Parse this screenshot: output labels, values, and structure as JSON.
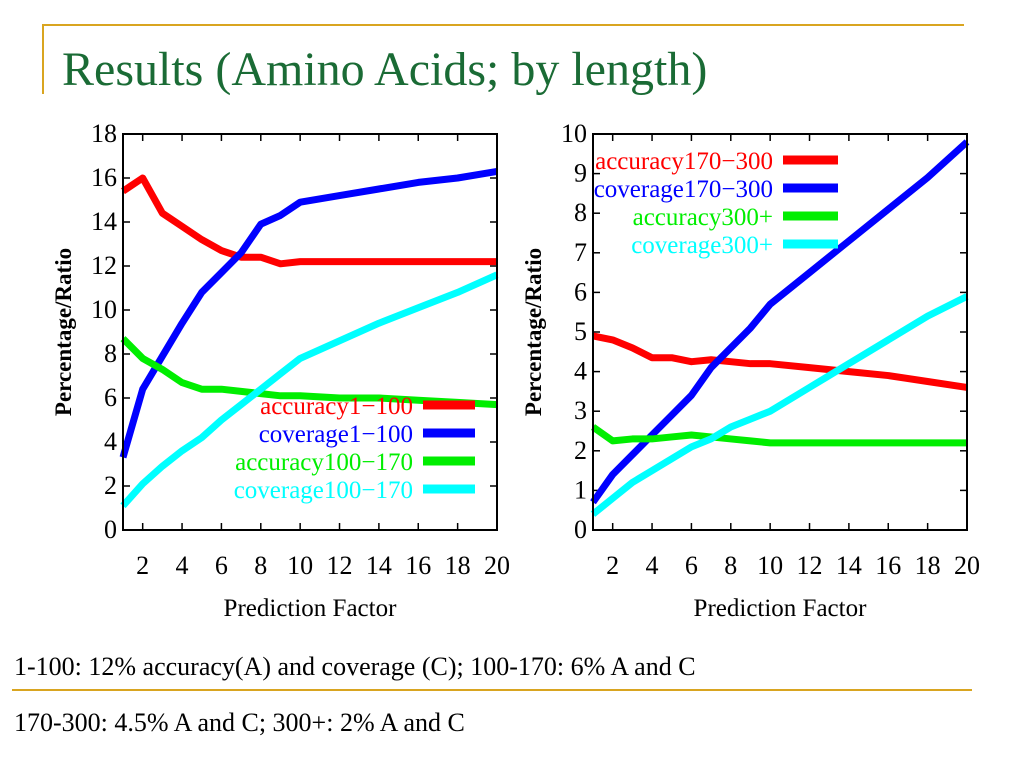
{
  "slide": {
    "title": "Results (Amino Acids; by length)",
    "caption_line1": "1-100: 12% accuracy(A) and coverage (C); 100-170: 6% A and C",
    "caption_line2": "170-300: 4.5% A and C; 300+: 2% A and C"
  },
  "colors": {
    "title": "#1a6b35",
    "accent": "#d9a520"
  },
  "chart_data": [
    {
      "type": "line",
      "xlabel": "Prediction Factor",
      "ylabel": "Percentage/Ratio",
      "xlim": [
        1,
        20
      ],
      "ylim": [
        0,
        18
      ],
      "xticks": [
        2,
        4,
        6,
        8,
        10,
        12,
        14,
        16,
        18,
        20
      ],
      "yticks": [
        0,
        2,
        4,
        6,
        8,
        10,
        12,
        14,
        16,
        18
      ],
      "legend_position": "bottom-right",
      "series": [
        {
          "name": "accuracy1−100",
          "color": "#ff0000",
          "x": [
            1,
            2,
            3,
            4,
            5,
            6,
            7,
            8,
            9,
            10,
            12,
            14,
            16,
            18,
            20
          ],
          "y": [
            15.4,
            16.0,
            14.4,
            13.8,
            13.2,
            12.7,
            12.4,
            12.4,
            12.1,
            12.2,
            12.2,
            12.2,
            12.2,
            12.2,
            12.2
          ]
        },
        {
          "name": "coverage1−100",
          "color": "#0000ff",
          "x": [
            1,
            2,
            3,
            4,
            5,
            6,
            7,
            8,
            9,
            10,
            12,
            14,
            16,
            18,
            20
          ],
          "y": [
            3.3,
            6.4,
            7.9,
            9.4,
            10.8,
            11.7,
            12.6,
            13.9,
            14.3,
            14.9,
            15.2,
            15.5,
            15.8,
            16.0,
            16.3
          ]
        },
        {
          "name": "accuracy100−170",
          "color": "#00ee00",
          "x": [
            1,
            2,
            3,
            4,
            5,
            6,
            7,
            8,
            9,
            10,
            12,
            14,
            16,
            18,
            20
          ],
          "y": [
            8.7,
            7.8,
            7.3,
            6.7,
            6.4,
            6.4,
            6.3,
            6.2,
            6.1,
            6.1,
            6.0,
            6.0,
            5.9,
            5.8,
            5.7
          ]
        },
        {
          "name": "coverage100−170",
          "color": "#00ffff",
          "x": [
            1,
            2,
            3,
            4,
            5,
            6,
            7,
            8,
            9,
            10,
            12,
            14,
            16,
            18,
            20
          ],
          "y": [
            1.1,
            2.1,
            2.9,
            3.6,
            4.2,
            5.0,
            5.7,
            6.4,
            7.1,
            7.8,
            8.6,
            9.4,
            10.1,
            10.8,
            11.6
          ]
        }
      ]
    },
    {
      "type": "line",
      "xlabel": "Prediction Factor",
      "ylabel": "Percentage/Ratio",
      "xlim": [
        1,
        20
      ],
      "ylim": [
        0,
        10
      ],
      "xticks": [
        2,
        4,
        6,
        8,
        10,
        12,
        14,
        16,
        18,
        20
      ],
      "yticks": [
        0,
        1,
        2,
        3,
        4,
        5,
        6,
        7,
        8,
        9,
        10
      ],
      "legend_position": "top-right",
      "series": [
        {
          "name": "accuracy170−300",
          "color": "#ff0000",
          "x": [
            1,
            2,
            3,
            4,
            5,
            6,
            7,
            8,
            9,
            10,
            12,
            14,
            16,
            18,
            20
          ],
          "y": [
            4.9,
            4.8,
            4.6,
            4.35,
            4.35,
            4.25,
            4.3,
            4.25,
            4.2,
            4.2,
            4.1,
            4.0,
            3.9,
            3.75,
            3.6
          ]
        },
        {
          "name": "coverage170−300",
          "color": "#0000ff",
          "x": [
            1,
            2,
            3,
            4,
            5,
            6,
            7,
            8,
            9,
            10,
            12,
            14,
            16,
            18,
            20
          ],
          "y": [
            0.7,
            1.4,
            1.9,
            2.4,
            2.9,
            3.4,
            4.1,
            4.6,
            5.1,
            5.7,
            6.5,
            7.3,
            8.1,
            8.9,
            9.8
          ]
        },
        {
          "name": "accuracy300+",
          "color": "#00ee00",
          "x": [
            1,
            2,
            3,
            4,
            5,
            6,
            7,
            8,
            9,
            10,
            12,
            14,
            16,
            18,
            20
          ],
          "y": [
            2.6,
            2.25,
            2.3,
            2.3,
            2.35,
            2.4,
            2.35,
            2.3,
            2.25,
            2.2,
            2.2,
            2.2,
            2.2,
            2.2,
            2.2
          ]
        },
        {
          "name": "coverage300+",
          "color": "#00ffff",
          "x": [
            1,
            2,
            3,
            4,
            5,
            6,
            7,
            8,
            9,
            10,
            12,
            14,
            16,
            18,
            20
          ],
          "y": [
            0.4,
            0.8,
            1.2,
            1.5,
            1.8,
            2.1,
            2.3,
            2.6,
            2.8,
            3.0,
            3.6,
            4.2,
            4.8,
            5.4,
            5.9
          ]
        }
      ]
    }
  ]
}
